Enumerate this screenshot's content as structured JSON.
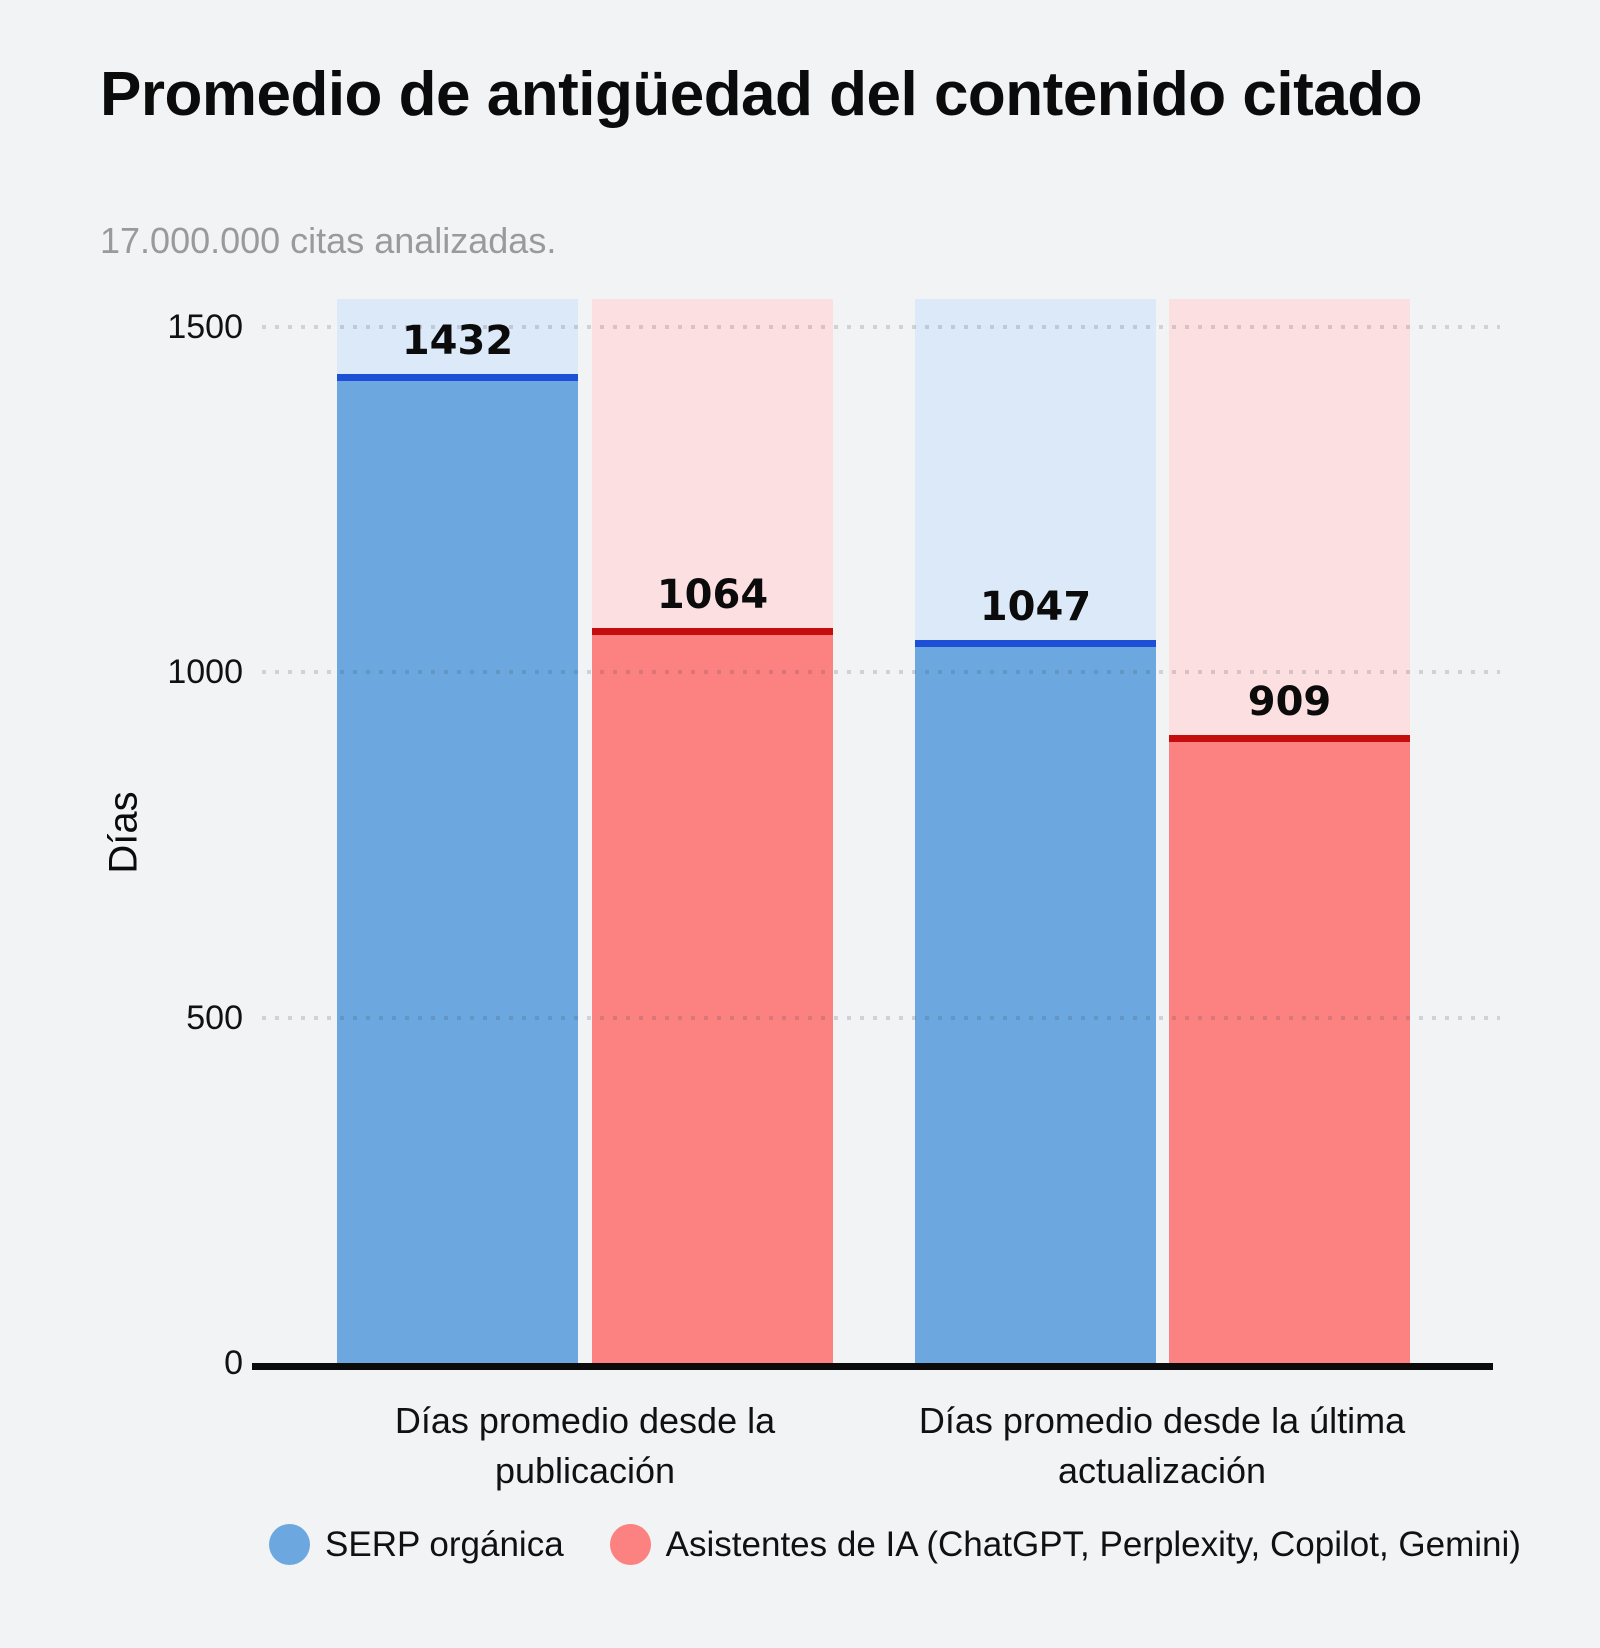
{
  "chart_data": {
    "type": "bar",
    "title": "Promedio de antigüedad del contenido citado",
    "subtitle": "17.000.000 citas analizadas.",
    "ylabel": "Días",
    "categories": [
      "Días promedio desde la publicación",
      "Días promedio desde la última actualización"
    ],
    "series": [
      {
        "name": "SERP orgánica",
        "values": [
          1432,
          1047
        ],
        "fill_color": "#6CA8DF",
        "tint_color": "#DCE9F8",
        "edge_color": "#1D4FD7"
      },
      {
        "name": "Asistentes de IA (ChatGPT, Perplexity, Copilot, Gemini)",
        "values": [
          1064,
          909
        ],
        "fill_color": "#FC8181",
        "tint_color": "#FBDFE1",
        "edge_color": "#C50D0D"
      }
    ],
    "yticks": [
      1500,
      1000,
      500,
      0
    ],
    "ylim": [
      0,
      1540
    ],
    "grid": "dotted horizontal",
    "legend_position": "bottom",
    "value_labels": true
  },
  "colors": {
    "page_bg": "#F2F3F5",
    "text": "#0B0B0B",
    "subtitle_text": "#9A9A9B",
    "axis": "#0B0B0B"
  }
}
